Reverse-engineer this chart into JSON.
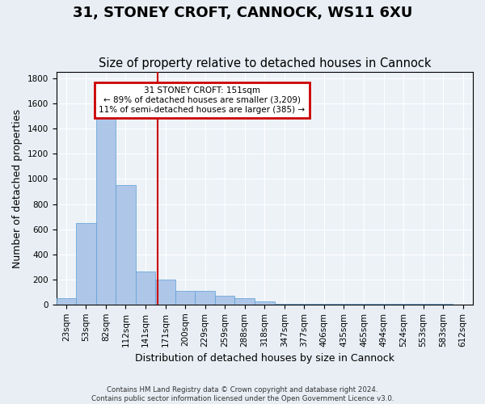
{
  "title": "31, STONEY CROFT, CANNOCK, WS11 6XU",
  "subtitle": "Size of property relative to detached houses in Cannock",
  "xlabel": "Distribution of detached houses by size in Cannock",
  "ylabel": "Number of detached properties",
  "bin_labels": [
    "23sqm",
    "53sqm",
    "82sqm",
    "112sqm",
    "141sqm",
    "171sqm",
    "200sqm",
    "229sqm",
    "259sqm",
    "288sqm",
    "318sqm",
    "347sqm",
    "377sqm",
    "406sqm",
    "435sqm",
    "465sqm",
    "494sqm",
    "524sqm",
    "553sqm",
    "583sqm",
    "612sqm"
  ],
  "bar_heights": [
    50,
    650,
    1500,
    950,
    265,
    200,
    110,
    110,
    70,
    50,
    25,
    5,
    5,
    5,
    5,
    5,
    5,
    5,
    5,
    5,
    0
  ],
  "bar_color": "#aec6e8",
  "bar_edge_color": "#5a9fd4",
  "vline_x": 4.62,
  "vline_color": "#cc0000",
  "ylim": [
    0,
    1850
  ],
  "yticks": [
    0,
    200,
    400,
    600,
    800,
    1000,
    1200,
    1400,
    1600,
    1800
  ],
  "annotation_text": "31 STONEY CROFT: 151sqm\n← 89% of detached houses are smaller (3,209)\n11% of semi-detached houses are larger (385) →",
  "annotation_box_color": "#ffffff",
  "annotation_box_edge_color": "#cc0000",
  "footer_line1": "Contains HM Land Registry data © Crown copyright and database right 2024.",
  "footer_line2": "Contains public sector information licensed under the Open Government Licence v3.0.",
  "bg_color": "#e8eef4",
  "plot_bg_color": "#edf2f7",
  "grid_color": "#ffffff",
  "title_fontsize": 13,
  "subtitle_fontsize": 10.5,
  "label_fontsize": 9,
  "tick_fontsize": 7.5,
  "annot_fontsize": 7.5
}
